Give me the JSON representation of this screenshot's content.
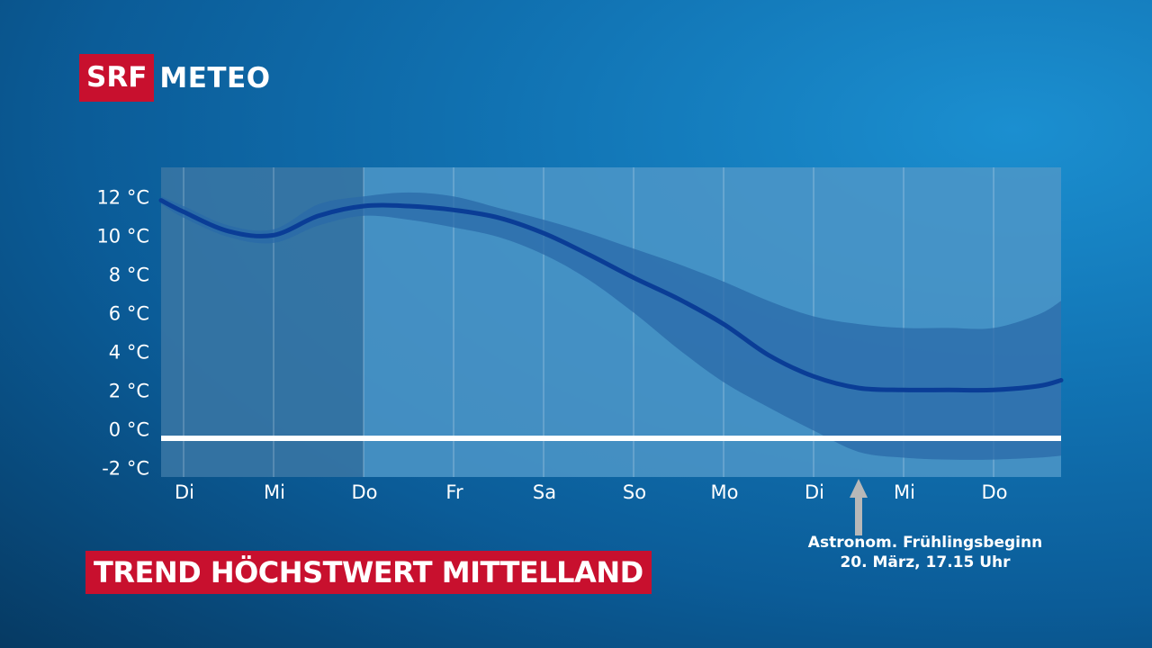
{
  "logo": {
    "brand": "SRF",
    "product": "METEO"
  },
  "title": "TREND HÖCHSTWERT MITTELLAND",
  "colors": {
    "logo_red": "#c8102e",
    "line": "#0a3d96",
    "band": "#2a6aa8",
    "zero_line": "#ffffff"
  },
  "chart_data": {
    "type": "line",
    "ylabel": "",
    "xlabel": "",
    "ylim": [
      -2.5,
      13.5
    ],
    "y_ticks": [
      {
        "value": 12,
        "label": "12 °C"
      },
      {
        "value": 10,
        "label": "10 °C"
      },
      {
        "value": 8,
        "label": "8 °C"
      },
      {
        "value": 6,
        "label": "6 °C"
      },
      {
        "value": 4,
        "label": "4 °C"
      },
      {
        "value": 2,
        "label": "2 °C"
      },
      {
        "value": 0,
        "label": "0 °C"
      },
      {
        "value": -2,
        "label": "-2 °C"
      }
    ],
    "x_labels": [
      "Di",
      "Mi",
      "Do",
      "Fr",
      "Sa",
      "So",
      "Mo",
      "Di",
      "Mi",
      "Do"
    ],
    "xlim": [
      -0.25,
      9.75
    ],
    "zero_line_value": -0.5,
    "shaded_past_until": 2.0,
    "series": [
      {
        "values": [
          [
            -0.25,
            11.8
          ],
          [
            0.0,
            11.2
          ],
          [
            0.5,
            10.2
          ],
          [
            1.0,
            10.0
          ],
          [
            1.5,
            11.0
          ],
          [
            2.0,
            11.5
          ],
          [
            2.5,
            11.5
          ],
          [
            3.0,
            11.3
          ],
          [
            3.5,
            10.9
          ],
          [
            4.0,
            10.1
          ],
          [
            4.5,
            9.0
          ],
          [
            5.0,
            7.8
          ],
          [
            5.5,
            6.7
          ],
          [
            6.0,
            5.4
          ],
          [
            6.5,
            3.8
          ],
          [
            7.0,
            2.7
          ],
          [
            7.5,
            2.1
          ],
          [
            8.0,
            2.0
          ],
          [
            8.5,
            2.0
          ],
          [
            9.0,
            2.0
          ],
          [
            9.5,
            2.2
          ],
          [
            9.75,
            2.5
          ]
        ]
      }
    ],
    "band": {
      "upper": [
        [
          -0.25,
          12.0
        ],
        [
          0.0,
          11.5
        ],
        [
          0.5,
          10.5
        ],
        [
          1.0,
          10.3
        ],
        [
          1.5,
          11.6
        ],
        [
          2.0,
          12.0
        ],
        [
          2.5,
          12.2
        ],
        [
          3.0,
          12.0
        ],
        [
          3.5,
          11.4
        ],
        [
          4.0,
          10.8
        ],
        [
          4.5,
          10.1
        ],
        [
          5.0,
          9.3
        ],
        [
          5.5,
          8.5
        ],
        [
          6.0,
          7.6
        ],
        [
          6.5,
          6.6
        ],
        [
          7.0,
          5.8
        ],
        [
          7.5,
          5.4
        ],
        [
          8.0,
          5.2
        ],
        [
          8.5,
          5.2
        ],
        [
          9.0,
          5.2
        ],
        [
          9.5,
          5.9
        ],
        [
          9.75,
          6.6
        ]
      ],
      "lower": [
        [
          -0.25,
          11.6
        ],
        [
          0.0,
          10.9
        ],
        [
          0.5,
          9.9
        ],
        [
          1.0,
          9.6
        ],
        [
          1.5,
          10.5
        ],
        [
          2.0,
          11.0
        ],
        [
          2.5,
          10.8
        ],
        [
          3.0,
          10.4
        ],
        [
          3.5,
          9.9
        ],
        [
          4.0,
          9.0
        ],
        [
          4.5,
          7.7
        ],
        [
          5.0,
          6.0
        ],
        [
          5.5,
          4.1
        ],
        [
          6.0,
          2.4
        ],
        [
          6.5,
          1.1
        ],
        [
          7.0,
          -0.1
        ],
        [
          7.5,
          -1.2
        ],
        [
          8.0,
          -1.5
        ],
        [
          8.5,
          -1.6
        ],
        [
          9.0,
          -1.6
        ],
        [
          9.5,
          -1.5
        ],
        [
          9.75,
          -1.4
        ]
      ]
    },
    "annotation": {
      "x": 7.5,
      "lines": [
        "Astronom. Frühlingsbeginn",
        "20. März, 17.15 Uhr"
      ]
    }
  }
}
